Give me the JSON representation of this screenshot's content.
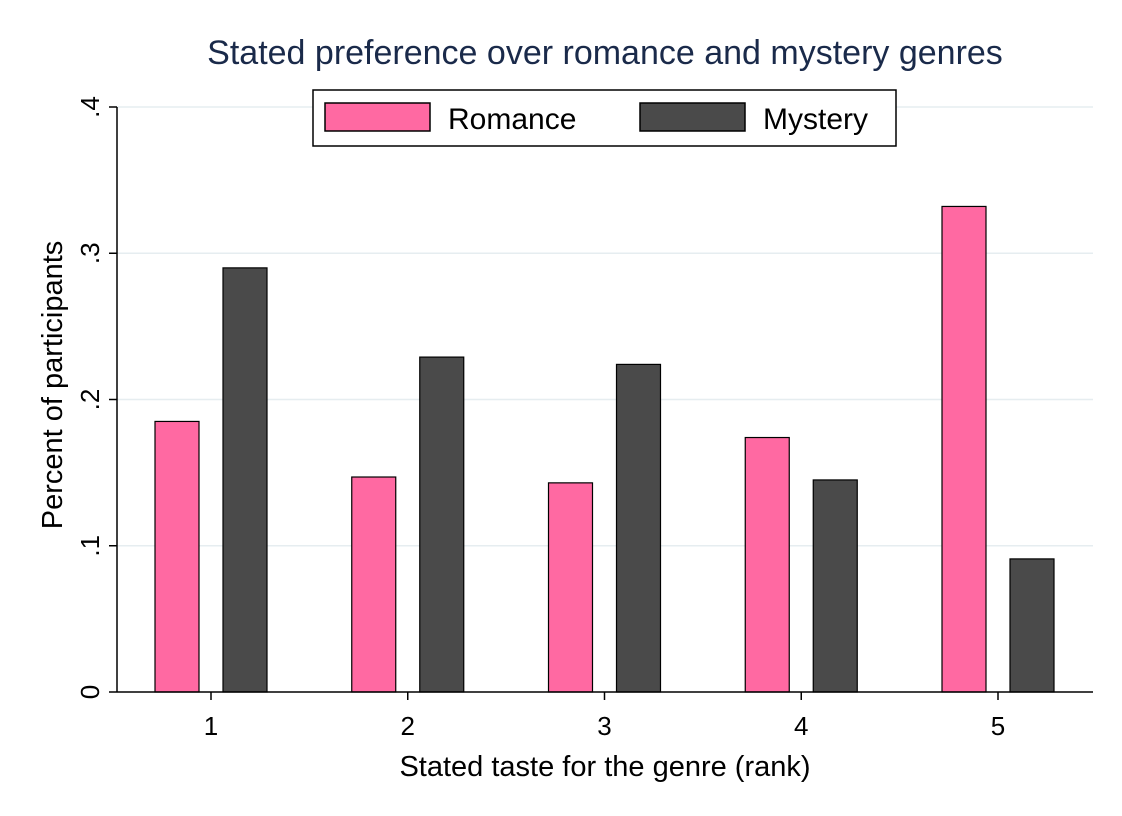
{
  "chart_data": {
    "type": "bar",
    "title": "Stated preference over romance and mystery genres",
    "xlabel": "Stated taste for the genre (rank)",
    "ylabel": "Percent of participants",
    "categories": [
      "1",
      "2",
      "3",
      "4",
      "5"
    ],
    "yticks": [
      {
        "value": 0,
        "label": "0"
      },
      {
        "value": 0.1,
        "label": ".1"
      },
      {
        "value": 0.2,
        "label": ".2"
      },
      {
        "value": 0.3,
        "label": ".3"
      },
      {
        "value": 0.4,
        "label": ".4"
      }
    ],
    "ylim": [
      0,
      0.4
    ],
    "grid": true,
    "legend_position": "top-center",
    "series": [
      {
        "name": "Romance",
        "color": "#ff69a2",
        "values": [
          0.185,
          0.147,
          0.143,
          0.174,
          0.332
        ]
      },
      {
        "name": "Mystery",
        "color": "#4a4a4a",
        "values": [
          0.29,
          0.229,
          0.224,
          0.145,
          0.091
        ]
      }
    ]
  }
}
